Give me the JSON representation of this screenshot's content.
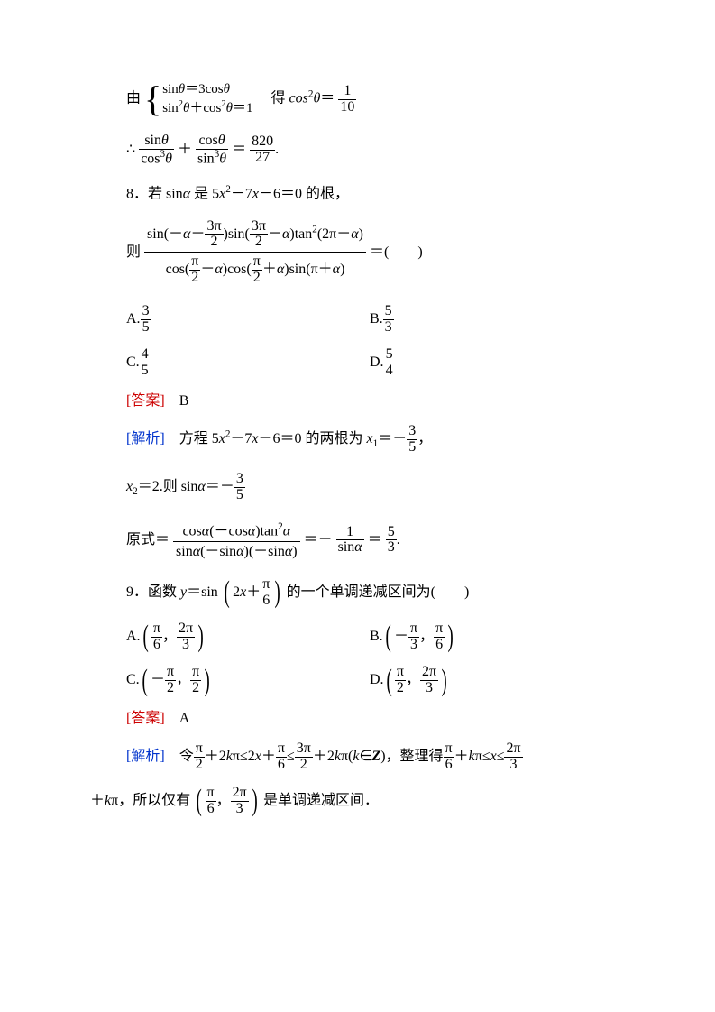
{
  "colors": {
    "text": "#000000",
    "answer": "#cc0000",
    "analysis": "#0033cc",
    "bg": "#ffffff"
  },
  "fontsize": {
    "body": 16,
    "sup": 11,
    "brace": 40,
    "paren": 34
  },
  "p7": {
    "lead": "由",
    "sys": {
      "line1_html": "sin<span class='italic'>θ</span>＝3cos<span class='italic'>θ</span>",
      "line2_html": "sin<span class='sup'>2</span><span class='italic'>θ</span>＋cos<span class='sup'>2</span><span class='italic'>θ</span>＝1"
    },
    "mid": "　得 ",
    "cos2": "cos",
    "exp2": "2",
    "theta": "θ",
    "eq": "＝",
    "frac_cos2": {
      "n": "1",
      "d": "10"
    },
    "therefore": "∴",
    "t1": {
      "n_html": "sin<span class='italic'>θ</span>",
      "d_html": "cos<span class='sup'>3</span><span class='italic'>θ</span>"
    },
    "plus": "＋",
    "t2": {
      "n_html": "cos<span class='italic'>θ</span>",
      "d_html": "sin<span class='sup'>3</span><span class='italic'>θ</span>"
    },
    "eq2": "＝",
    "t3": {
      "n": "820",
      "d": "27"
    },
    "dot": "."
  },
  "q8": {
    "stem_a": "8．若 sin",
    "alpha": "α",
    "stem_b": " 是 5",
    "x": "x",
    "stem_c": "－7",
    "stem_d": "－6＝0 的根，",
    "then": "则",
    "big": {
      "num_html": "sin(－<span class='italic'>α</span>－<span class='frac'><span class='num'>3π</span><span class='den'>2</span></span>)sin(<span class='frac'><span class='num'>3π</span><span class='den'>2</span></span>－<span class='italic'>α</span>)tan<span class='sup'>2</span>(2π－<span class='italic'>α</span>)",
      "den_html": "cos(<span class='frac'><span class='num'>π</span><span class='den'>2</span></span>－<span class='italic'>α</span>)cos(<span class='frac'><span class='num'>π</span><span class='den'>2</span></span>＋<span class='italic'>α</span>)sin(π＋<span class='italic'>α</span>)"
    },
    "tail": "＝(　　)",
    "A": {
      "label": "A.",
      "n": "3",
      "d": "5"
    },
    "B": {
      "label": "B.",
      "n": "5",
      "d": "3"
    },
    "C": {
      "label": "C.",
      "n": "4",
      "d": "5"
    },
    "D": {
      "label": "D.",
      "n": "5",
      "d": "4"
    },
    "answer_label": "[答案]",
    "answer": "B",
    "analysis_label": "[解析]",
    "ana1_a": "方程 5",
    "ana1_b": "－7",
    "ana1_c": "－6＝0 的两根为 ",
    "x1": "x",
    "sub1": "1",
    "eqn1": "＝－",
    "f35": {
      "n": "3",
      "d": "5"
    },
    "comma": "，",
    "x2": "x",
    "sub2": "2",
    "eq2": "＝2.",
    "then_sin": "则 sin",
    "eq3": "＝－",
    "orig": "原式＝",
    "of": {
      "num_html": "cos<span class='italic'>α</span>(－cos<span class='italic'>α</span>)tan<span class='sup'>2</span><span class='italic'>α</span>",
      "den_html": "sin<span class='italic'>α</span>(－sin<span class='italic'>α</span>)(－sin<span class='italic'>α</span>)"
    },
    "eq4": "＝－",
    "of2": {
      "n": "1",
      "d_html": "sin<span class='italic'>α</span>"
    },
    "eq5": "＝",
    "of3": {
      "n": "5",
      "d": "3"
    },
    "dot": "."
  },
  "q9": {
    "stem_a": "9．函数 ",
    "y": "y",
    "eq": "＝sin",
    "arg_html": "2<span class='italic'>x</span>＋<span class='frac'><span class='num'>π</span><span class='den'>6</span></span>",
    "stem_b": "的一个单调递减区间为(　　)",
    "A": {
      "label": "A.",
      "html": "<span class='frac'><span class='num'>π</span><span class='den'>6</span></span>，<span class='frac'><span class='num'>2π</span><span class='den'>3</span></span>"
    },
    "B": {
      "label": "B.",
      "html": "－<span class='frac'><span class='num'>π</span><span class='den'>3</span></span>，<span class='frac'><span class='num'>π</span><span class='den'>6</span></span>"
    },
    "C": {
      "label": "C.",
      "html": "－<span class='frac'><span class='num'>π</span><span class='den'>2</span></span>，<span class='frac'><span class='num'>π</span><span class='den'>2</span></span>"
    },
    "D": {
      "label": "D.",
      "html": "<span class='frac'><span class='num'>π</span><span class='den'>2</span></span>，<span class='frac'><span class='num'>2π</span><span class='den'>3</span></span>"
    },
    "answer_label": "[答案]",
    "answer": "A",
    "analysis_label": "[解析]",
    "ana_a": "令",
    "chain_html": "<span class='frac'><span class='num'>π</span><span class='den'>2</span></span>＋2<span class='italic'>k</span>π≤2<span class='italic'>x</span>＋<span class='frac'><span class='num'>π</span><span class='den'>6</span></span>≤<span class='frac'><span class='num'>3π</span><span class='den'>2</span></span>＋2<span class='italic'>k</span>π(<span class='italic'>k</span>∈<span class='italic bold'>Z</span>)，整理得<span class='frac'><span class='num'>π</span><span class='den'>6</span></span>＋<span class='italic'>k</span>π≤<span class='italic'>x</span>≤<span class='frac'><span class='num'>2π</span><span class='den'>3</span></span>",
    "ana_b_html": "＋<span class='italic'>k</span>π，所以仅有",
    "interval_html": "<span class='frac'><span class='num'>π</span><span class='den'>6</span></span>，<span class='frac'><span class='num'>2π</span><span class='den'>3</span></span>",
    "ana_c": "是单调递减区间．"
  }
}
